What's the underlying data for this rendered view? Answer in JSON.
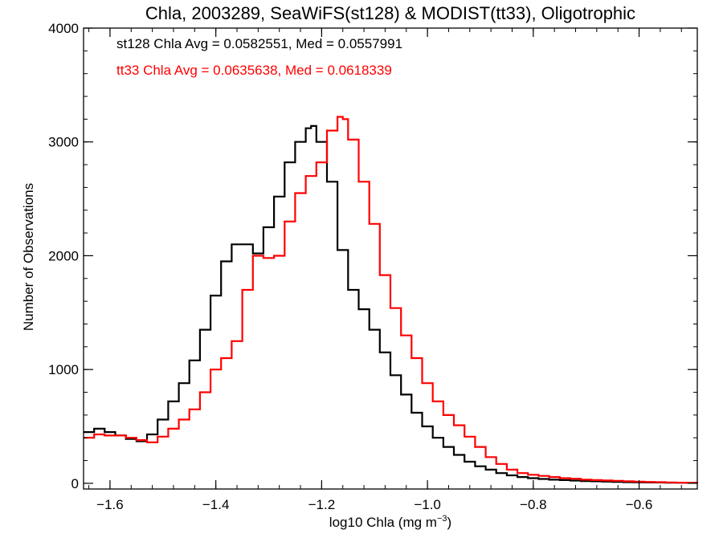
{
  "chart_data": {
    "type": "line",
    "title": "Chla, 2003289, SeaWiFS(st128) & MODIST(tt33), Oligotrophic",
    "xlabel_main": "log10 Chla (mg m",
    "xlabel_sup": "−3",
    "xlabel_end": ")",
    "ylabel": "Number of Observations",
    "xlim": [
      -1.65,
      -0.49
    ],
    "ylim": [
      -50,
      4000
    ],
    "x_ticks": [
      -1.6,
      -1.4,
      -1.2,
      -1.0,
      -0.8,
      -0.6
    ],
    "x_tick_labels": [
      "−1.6",
      "−1.4",
      "−1.2",
      "−1.0",
      "−0.8",
      "−0.6"
    ],
    "y_ticks": [
      0,
      1000,
      2000,
      3000,
      4000
    ],
    "y_tick_labels": [
      "0",
      "1000",
      "2000",
      "3000",
      "4000"
    ],
    "step": "histogram",
    "annotations": [
      {
        "text": "st128 Chla Avg = 0.0582551, Med = 0.0557991",
        "color": "#000000"
      },
      {
        "text": "tt33 Chla Avg = 0.0635638, Med = 0.0618339",
        "color": "#ff0000"
      }
    ],
    "series": [
      {
        "color": "#000000",
        "x": [
          -1.65,
          -1.63,
          -1.61,
          -1.59,
          -1.57,
          -1.55,
          -1.53,
          -1.51,
          -1.49,
          -1.47,
          -1.45,
          -1.43,
          -1.41,
          -1.39,
          -1.37,
          -1.35,
          -1.33,
          -1.31,
          -1.29,
          -1.27,
          -1.25,
          -1.23,
          -1.22,
          -1.21,
          -1.19,
          -1.17,
          -1.15,
          -1.13,
          -1.11,
          -1.09,
          -1.07,
          -1.05,
          -1.03,
          -1.01,
          -0.99,
          -0.97,
          -0.95,
          -0.93,
          -0.91,
          -0.89,
          -0.87,
          -0.85,
          -0.83,
          -0.81,
          -0.79,
          -0.77,
          -0.75,
          -0.73,
          -0.71,
          -0.69,
          -0.67,
          -0.65,
          -0.63,
          -0.61,
          -0.59,
          -0.57,
          -0.55,
          -0.53,
          -0.51,
          -0.49
        ],
        "y": [
          450,
          480,
          450,
          420,
          390,
          370,
          430,
          560,
          720,
          880,
          1080,
          1350,
          1650,
          1950,
          2100,
          2100,
          2020,
          2250,
          2520,
          2820,
          3000,
          3120,
          3140,
          3000,
          2650,
          2050,
          1700,
          1530,
          1350,
          1150,
          950,
          780,
          620,
          500,
          400,
          320,
          250,
          190,
          150,
          120,
          90,
          70,
          55,
          45,
          38,
          32,
          28,
          24,
          20,
          18,
          15,
          12,
          10,
          9,
          8,
          7,
          6,
          5,
          4,
          3
        ]
      },
      {
        "color": "#ff0000",
        "x": [
          -1.65,
          -1.63,
          -1.61,
          -1.59,
          -1.57,
          -1.55,
          -1.53,
          -1.51,
          -1.49,
          -1.47,
          -1.45,
          -1.43,
          -1.41,
          -1.39,
          -1.37,
          -1.35,
          -1.33,
          -1.31,
          -1.29,
          -1.27,
          -1.25,
          -1.23,
          -1.21,
          -1.19,
          -1.17,
          -1.16,
          -1.15,
          -1.13,
          -1.11,
          -1.09,
          -1.07,
          -1.05,
          -1.03,
          -1.01,
          -0.99,
          -0.97,
          -0.95,
          -0.93,
          -0.91,
          -0.89,
          -0.87,
          -0.85,
          -0.83,
          -0.81,
          -0.79,
          -0.77,
          -0.75,
          -0.73,
          -0.71,
          -0.69,
          -0.67,
          -0.65,
          -0.63,
          -0.61,
          -0.59,
          -0.57,
          -0.55,
          -0.53,
          -0.51,
          -0.49
        ],
        "y": [
          400,
          430,
          420,
          420,
          400,
          380,
          360,
          410,
          480,
          560,
          650,
          800,
          1000,
          1100,
          1250,
          1700,
          2000,
          1980,
          2000,
          2300,
          2550,
          2700,
          2820,
          3100,
          3220,
          3200,
          3020,
          2650,
          2280,
          1830,
          1540,
          1300,
          1100,
          880,
          720,
          600,
          510,
          410,
          320,
          230,
          170,
          120,
          90,
          75,
          65,
          55,
          45,
          40,
          32,
          28,
          25,
          22,
          18,
          15,
          12,
          10,
          8,
          6,
          5,
          4
        ]
      }
    ]
  }
}
